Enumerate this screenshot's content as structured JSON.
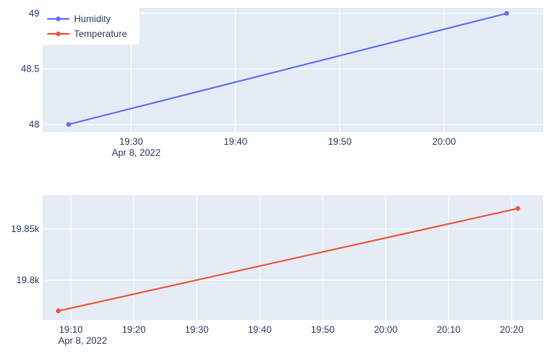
{
  "chart_data": [
    {
      "type": "line",
      "x_type": "datetime",
      "date_label": "Apr 8, 2022",
      "x_ticks": [
        "19:30",
        "19:40",
        "19:50",
        "20:00"
      ],
      "x_range": [
        "2022-04-08T19:21:30",
        "2022-04-08T20:09:30"
      ],
      "y_ticks": [
        "48",
        "48.5",
        "49"
      ],
      "y_tick_values": [
        48,
        48.5,
        49
      ],
      "ylim": [
        47.93,
        49.05
      ],
      "grid": true,
      "series": [
        {
          "name": "Humidity",
          "color": "#636efa",
          "x": [
            "2022-04-08T19:24:00",
            "2022-04-08T20:06:00"
          ],
          "y": [
            48,
            49
          ]
        }
      ]
    },
    {
      "type": "line",
      "x_type": "datetime",
      "date_label": "Apr 8, 2022",
      "x_ticks": [
        "19:10",
        "19:20",
        "19:30",
        "19:40",
        "19:50",
        "20:00",
        "20:10",
        "20:20"
      ],
      "x_range": [
        "2022-04-08T19:05:30",
        "2022-04-08T20:25:00"
      ],
      "y_ticks": [
        "19.8k",
        "19.85k"
      ],
      "y_tick_values": [
        19800,
        19850
      ],
      "ylim": [
        19761,
        19883
      ],
      "grid": true,
      "series": [
        {
          "name": "Temperature",
          "color": "#ef553b",
          "x": [
            "2022-04-08T19:08:00",
            "2022-04-08T20:21:00"
          ],
          "y": [
            19770,
            19870
          ]
        }
      ]
    }
  ],
  "legend": {
    "placement": "top-left",
    "items": [
      {
        "label": "Humidity",
        "color": "#636efa"
      },
      {
        "label": "Temperature",
        "color": "#ef553b"
      }
    ]
  }
}
